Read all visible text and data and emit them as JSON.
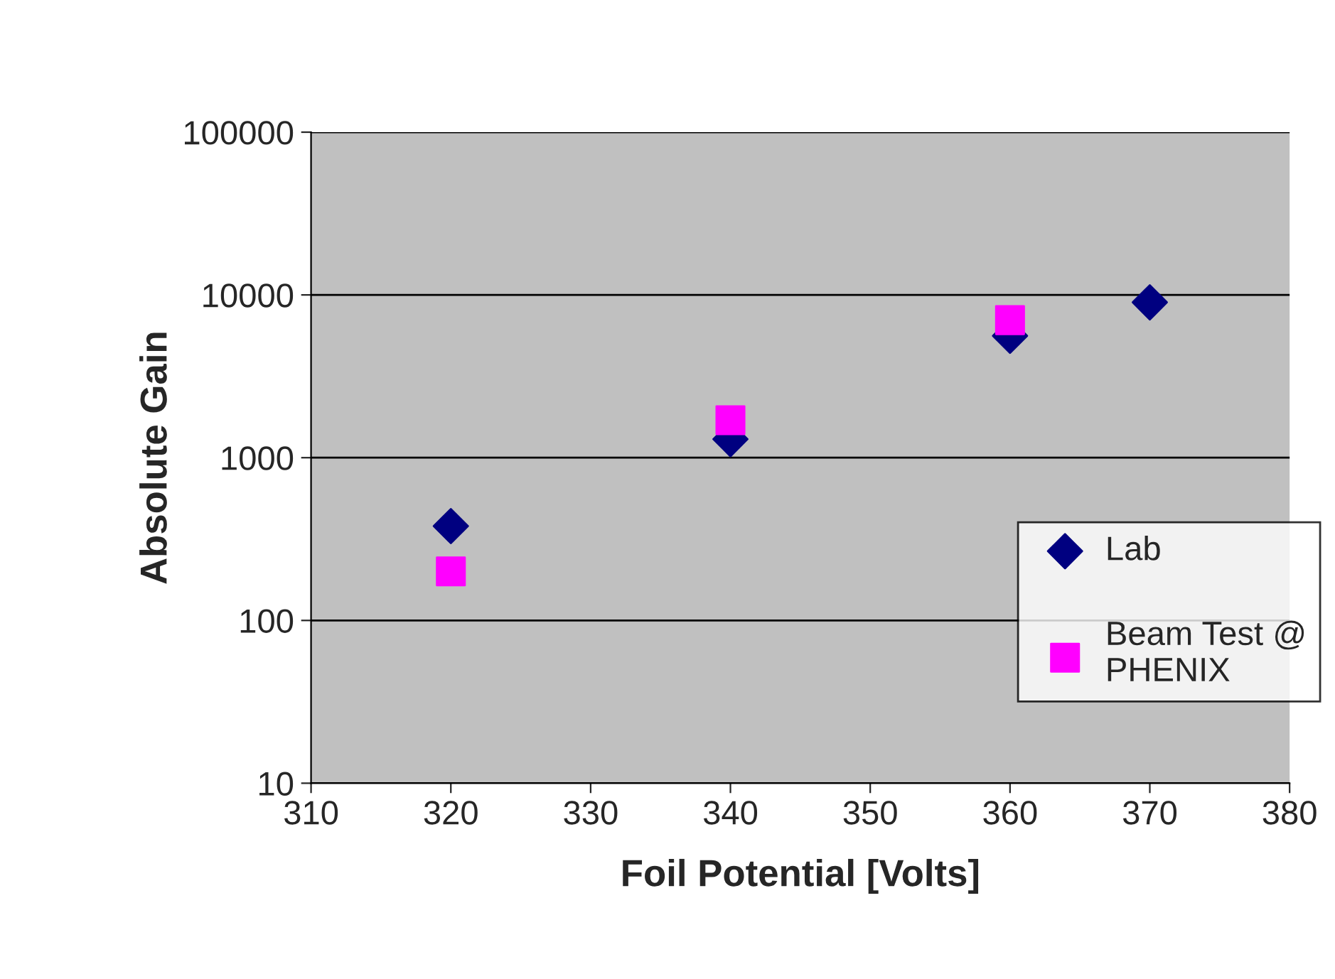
{
  "chart_data": {
    "type": "scatter",
    "xlabel": "Foil Potential [Volts]",
    "ylabel": "Absolute Gain",
    "log": "y",
    "xlim": [
      310,
      380
    ],
    "xticks": [
      310,
      320,
      330,
      340,
      350,
      360,
      370,
      380
    ],
    "ylim": [
      10,
      100000
    ],
    "yticks": [
      10,
      100,
      1000,
      10000,
      100000
    ],
    "grid": "y",
    "legend": "right",
    "series": [
      {
        "name": "Lab",
        "color": "#000080",
        "marker": "diamond",
        "x": [
          320,
          340,
          360,
          370
        ],
        "values": [
          380,
          1300,
          5600,
          9000
        ]
      },
      {
        "name": "Beam Test @\nPHENIX",
        "color": "#ff00ff",
        "marker": "square",
        "x": [
          320,
          340,
          360
        ],
        "values": [
          200,
          1700,
          7000
        ]
      }
    ]
  }
}
